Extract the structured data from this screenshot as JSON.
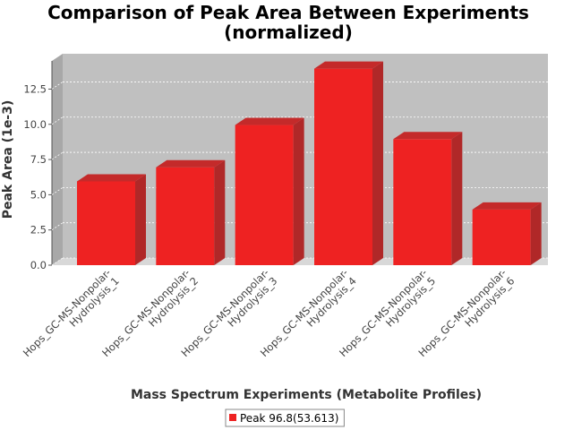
{
  "chart_data": {
    "type": "bar",
    "title": "Comparison of Peak Area Between Experiments",
    "subtitle": "(normalized)",
    "xlabel": "Mass Spectrum Experiments (Metabolite Profiles)",
    "ylabel": "Peak Area (1e-3)",
    "categories": [
      [
        "Hops_GC-MS-Nonpolar-",
        "Hydrolysis_1"
      ],
      [
        "Hops_GC-MS-Nonpolar-",
        "Hydrolysis_2"
      ],
      [
        "Hops_GC-MS-Nonpolar-",
        "Hydrolysis_3"
      ],
      [
        "Hops_GC-MS-Nonpolar-",
        "Hydrolysis_4"
      ],
      [
        "Hops_GC-MS-Nonpolar-",
        "Hydrolysis_5"
      ],
      [
        "Hops_GC-MS-Nonpolar-",
        "Hydrolysis_6"
      ]
    ],
    "series": [
      {
        "name": "Peak 96.8(53.613)",
        "values": [
          5.95,
          6.95,
          9.95,
          13.95,
          8.95,
          3.95
        ],
        "color": "#ee2222"
      }
    ],
    "ylim": [
      0,
      14.5
    ],
    "yticks": [
      "0.0",
      "2.5",
      "5.0",
      "7.5",
      "10.0",
      "12.5"
    ],
    "grid": true,
    "legend_position": "bottom",
    "plot_background": "#c0c0c0"
  }
}
